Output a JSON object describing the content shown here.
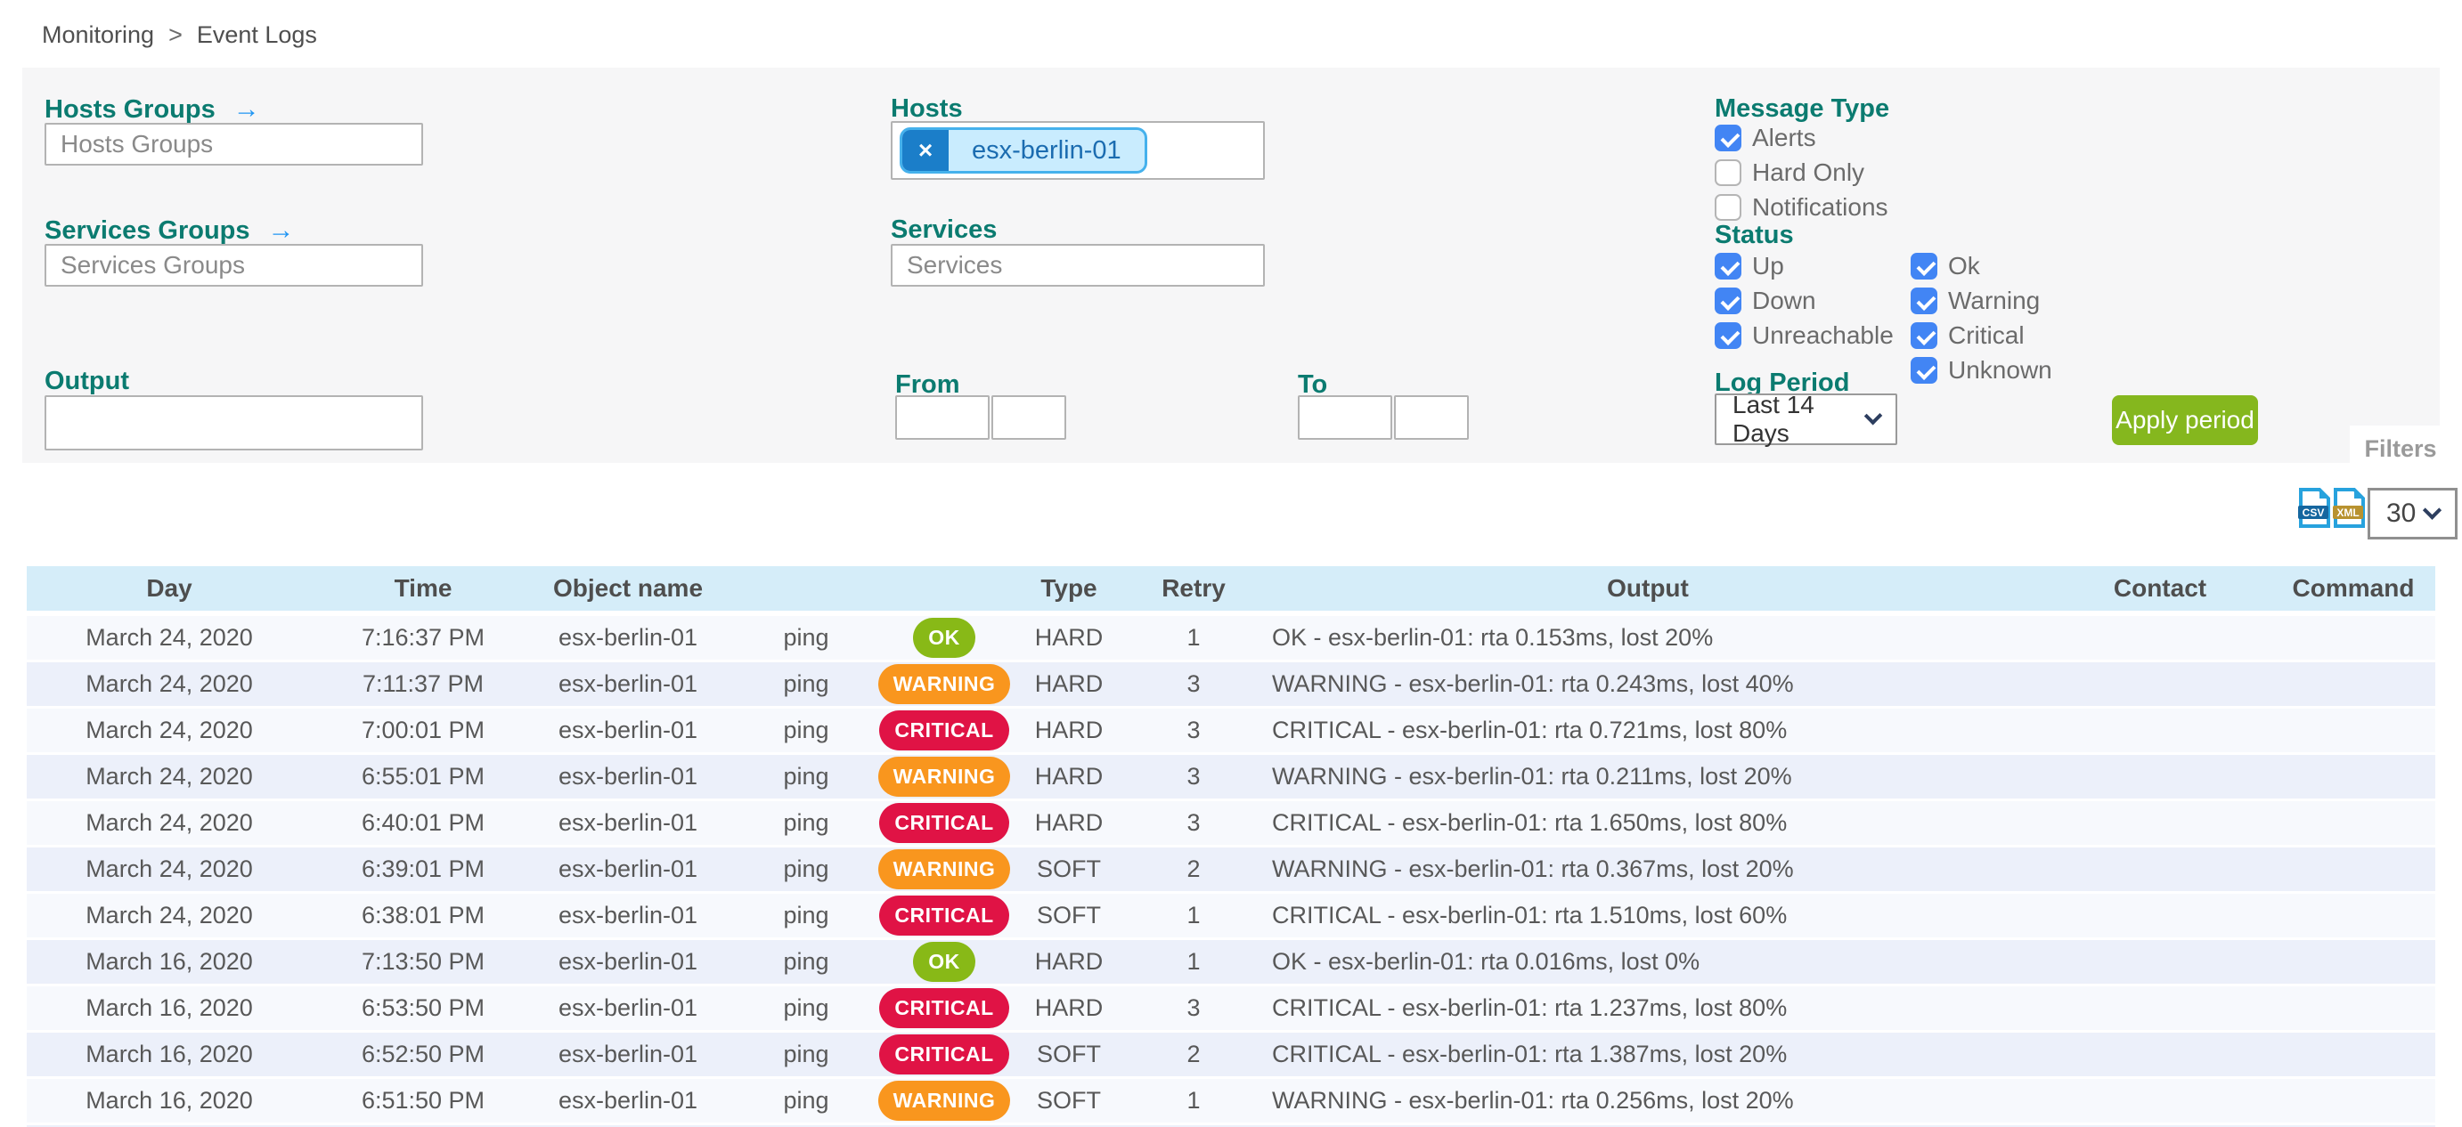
{
  "breadcrumb": {
    "section": "Monitoring",
    "separator": ">",
    "page": "Event Logs"
  },
  "filters": {
    "hosts_groups": {
      "label": "Hosts Groups",
      "arrow": "→",
      "placeholder": "Hosts Groups"
    },
    "services_groups": {
      "label": "Services Groups",
      "arrow": "→",
      "placeholder": "Services Groups"
    },
    "hosts": {
      "label": "Hosts",
      "chips": [
        {
          "text": "esx-berlin-01",
          "remove": "×"
        }
      ]
    },
    "services": {
      "label": "Services",
      "placeholder": "Services"
    },
    "output": {
      "label": "Output",
      "value": ""
    },
    "from": {
      "label": "From",
      "date": "",
      "time": ""
    },
    "to": {
      "label": "To",
      "date": "",
      "time": ""
    },
    "message_type": {
      "label": "Message Type",
      "options": [
        {
          "label": "Alerts",
          "checked": true
        },
        {
          "label": "Hard Only",
          "checked": false
        },
        {
          "label": "Notifications",
          "checked": false
        }
      ]
    },
    "status": {
      "label": "Status",
      "host_options": [
        {
          "label": "Up",
          "checked": true
        },
        {
          "label": "Down",
          "checked": true
        },
        {
          "label": "Unreachable",
          "checked": true
        }
      ],
      "service_options": [
        {
          "label": "Ok",
          "checked": true
        },
        {
          "label": "Warning",
          "checked": true
        },
        {
          "label": "Critical",
          "checked": true
        },
        {
          "label": "Unknown",
          "checked": true
        }
      ]
    },
    "log_period": {
      "label": "Log Period",
      "value": "Last 14 Days"
    },
    "apply_button_label": "Apply period",
    "filters_tab_label": "Filters"
  },
  "toolbar": {
    "csv_label": "CSV",
    "xml_label": "XML",
    "page_size": "30"
  },
  "table": {
    "columns": [
      "Day",
      "Time",
      "Object name",
      "",
      "",
      "Type",
      "Retry",
      "Output",
      "Contact",
      "Command"
    ],
    "rows": [
      {
        "day": "March 24, 2020",
        "time": "7:16:37 PM",
        "object": "esx-berlin-01",
        "service": "ping",
        "status": "OK",
        "type": "HARD",
        "retry": "1",
        "output": "OK - esx-berlin-01: rta 0.153ms, lost 20%",
        "contact": "",
        "command": ""
      },
      {
        "day": "March 24, 2020",
        "time": "7:11:37 PM",
        "object": "esx-berlin-01",
        "service": "ping",
        "status": "WARNING",
        "type": "HARD",
        "retry": "3",
        "output": "WARNING - esx-berlin-01: rta 0.243ms, lost 40%",
        "contact": "",
        "command": ""
      },
      {
        "day": "March 24, 2020",
        "time": "7:00:01 PM",
        "object": "esx-berlin-01",
        "service": "ping",
        "status": "CRITICAL",
        "type": "HARD",
        "retry": "3",
        "output": "CRITICAL - esx-berlin-01: rta 0.721ms, lost 80%",
        "contact": "",
        "command": ""
      },
      {
        "day": "March 24, 2020",
        "time": "6:55:01 PM",
        "object": "esx-berlin-01",
        "service": "ping",
        "status": "WARNING",
        "type": "HARD",
        "retry": "3",
        "output": "WARNING - esx-berlin-01: rta 0.211ms, lost 20%",
        "contact": "",
        "command": ""
      },
      {
        "day": "March 24, 2020",
        "time": "6:40:01 PM",
        "object": "esx-berlin-01",
        "service": "ping",
        "status": "CRITICAL",
        "type": "HARD",
        "retry": "3",
        "output": "CRITICAL - esx-berlin-01: rta 1.650ms, lost 80%",
        "contact": "",
        "command": ""
      },
      {
        "day": "March 24, 2020",
        "time": "6:39:01 PM",
        "object": "esx-berlin-01",
        "service": "ping",
        "status": "WARNING",
        "type": "SOFT",
        "retry": "2",
        "output": "WARNING - esx-berlin-01: rta 0.367ms, lost 20%",
        "contact": "",
        "command": ""
      },
      {
        "day": "March 24, 2020",
        "time": "6:38:01 PM",
        "object": "esx-berlin-01",
        "service": "ping",
        "status": "CRITICAL",
        "type": "SOFT",
        "retry": "1",
        "output": "CRITICAL - esx-berlin-01: rta 1.510ms, lost 60%",
        "contact": "",
        "command": ""
      },
      {
        "day": "March 16, 2020",
        "time": "7:13:50 PM",
        "object": "esx-berlin-01",
        "service": "ping",
        "status": "OK",
        "type": "HARD",
        "retry": "1",
        "output": "OK - esx-berlin-01: rta 0.016ms, lost 0%",
        "contact": "",
        "command": ""
      },
      {
        "day": "March 16, 2020",
        "time": "6:53:50 PM",
        "object": "esx-berlin-01",
        "service": "ping",
        "status": "CRITICAL",
        "type": "HARD",
        "retry": "3",
        "output": "CRITICAL - esx-berlin-01: rta 1.237ms, lost 80%",
        "contact": "",
        "command": ""
      },
      {
        "day": "March 16, 2020",
        "time": "6:52:50 PM",
        "object": "esx-berlin-01",
        "service": "ping",
        "status": "CRITICAL",
        "type": "SOFT",
        "retry": "2",
        "output": "CRITICAL - esx-berlin-01: rta 1.387ms, lost 20%",
        "contact": "",
        "command": ""
      },
      {
        "day": "March 16, 2020",
        "time": "6:51:50 PM",
        "object": "esx-berlin-01",
        "service": "ping",
        "status": "WARNING",
        "type": "SOFT",
        "retry": "1",
        "output": "WARNING - esx-berlin-01: rta 0.256ms, lost 20%",
        "contact": "",
        "command": ""
      }
    ]
  },
  "colors": {
    "accent_teal": "#0b7b70",
    "link_blue": "#2196f3",
    "checkbox_blue": "#4285f4",
    "ok_green": "#88b917",
    "warning_orange": "#f9961e",
    "critical_red": "#e01345",
    "apply_green": "#85b71e",
    "table_header_bg": "#d5edf9",
    "chip_bg": "#c9ecfe",
    "chip_border": "#45b1ec",
    "csv_band": "#15669f",
    "xml_band": "#b8922f"
  }
}
